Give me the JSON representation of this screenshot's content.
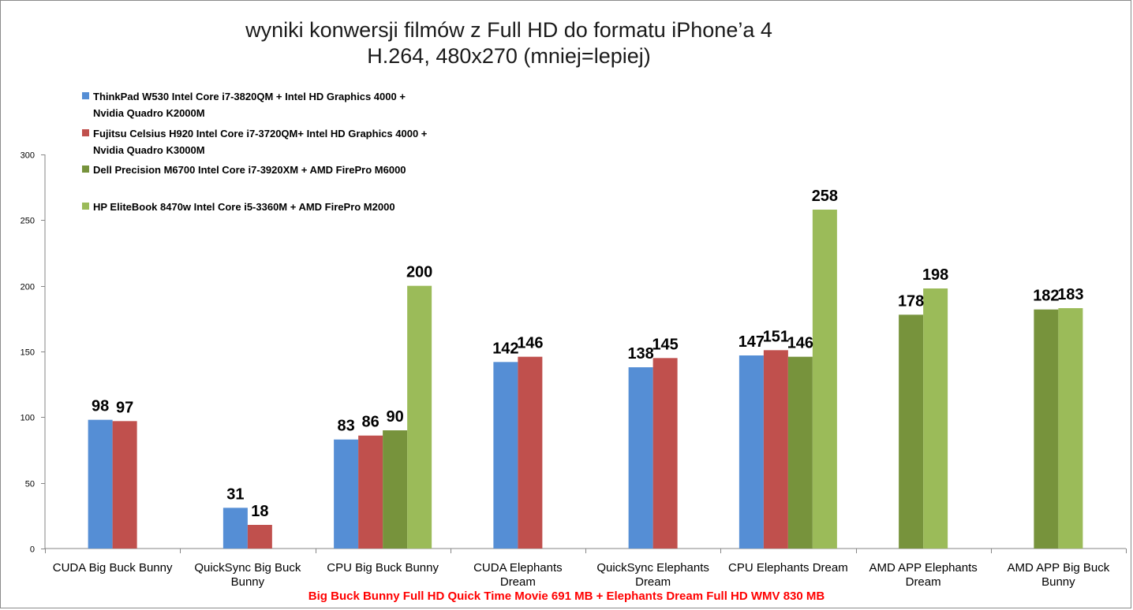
{
  "chart_data": {
    "type": "bar",
    "title": [
      "wyniki konwersji filmów z Full HD do formatu iPhone’a 4",
      "H.264, 480x270 (mniej=lepiej)"
    ],
    "footer": "Big Buck Bunny Full HD Quick Time Movie 691 MB + Elephants Dream Full HD WMV 830 MB",
    "ylim": [
      0,
      300
    ],
    "yticks": [
      0,
      50,
      100,
      150,
      200,
      250,
      300
    ],
    "grid": false,
    "legend_position": "top-left",
    "categories": [
      [
        "CUDA Big Buck Bunny"
      ],
      [
        "QuickSync Big Buck",
        "Bunny"
      ],
      [
        "CPU Big Buck Bunny"
      ],
      [
        "CUDA Elephants",
        "Dream"
      ],
      [
        "QuickSync Elephants",
        "Dream"
      ],
      [
        "CPU Elephants Dream"
      ],
      [
        "AMD APP Elephants",
        "Dream"
      ],
      [
        "AMD APP Big Buck",
        "Bunny"
      ]
    ],
    "series": [
      {
        "name": [
          "ThinkPad W530 Intel Core i7-3820QM + Intel HD Graphics 4000 +",
          "Nvidia Quadro K2000M"
        ],
        "color": "#558ED5",
        "values": [
          98,
          31,
          83,
          142,
          138,
          147,
          null,
          null
        ]
      },
      {
        "name": [
          "Fujitsu Celsius H920 Intel Core i7-3720QM+ Intel HD Graphics 4000 +",
          "Nvidia Quadro K3000M"
        ],
        "color": "#C0504D",
        "values": [
          97,
          18,
          86,
          146,
          145,
          151,
          null,
          null
        ]
      },
      {
        "name": [
          "Dell Precision M6700 Intel Core i7-3920XM + AMD FirePro M6000"
        ],
        "color": "#77933C",
        "values": [
          null,
          null,
          90,
          null,
          null,
          146,
          178,
          182
        ]
      },
      {
        "name": [
          "HP EliteBook 8470w Intel Core i5-3360M + AMD FirePro M2000"
        ],
        "color": "#9BBB59",
        "values": [
          null,
          null,
          200,
          null,
          null,
          258,
          198,
          183
        ]
      }
    ]
  }
}
